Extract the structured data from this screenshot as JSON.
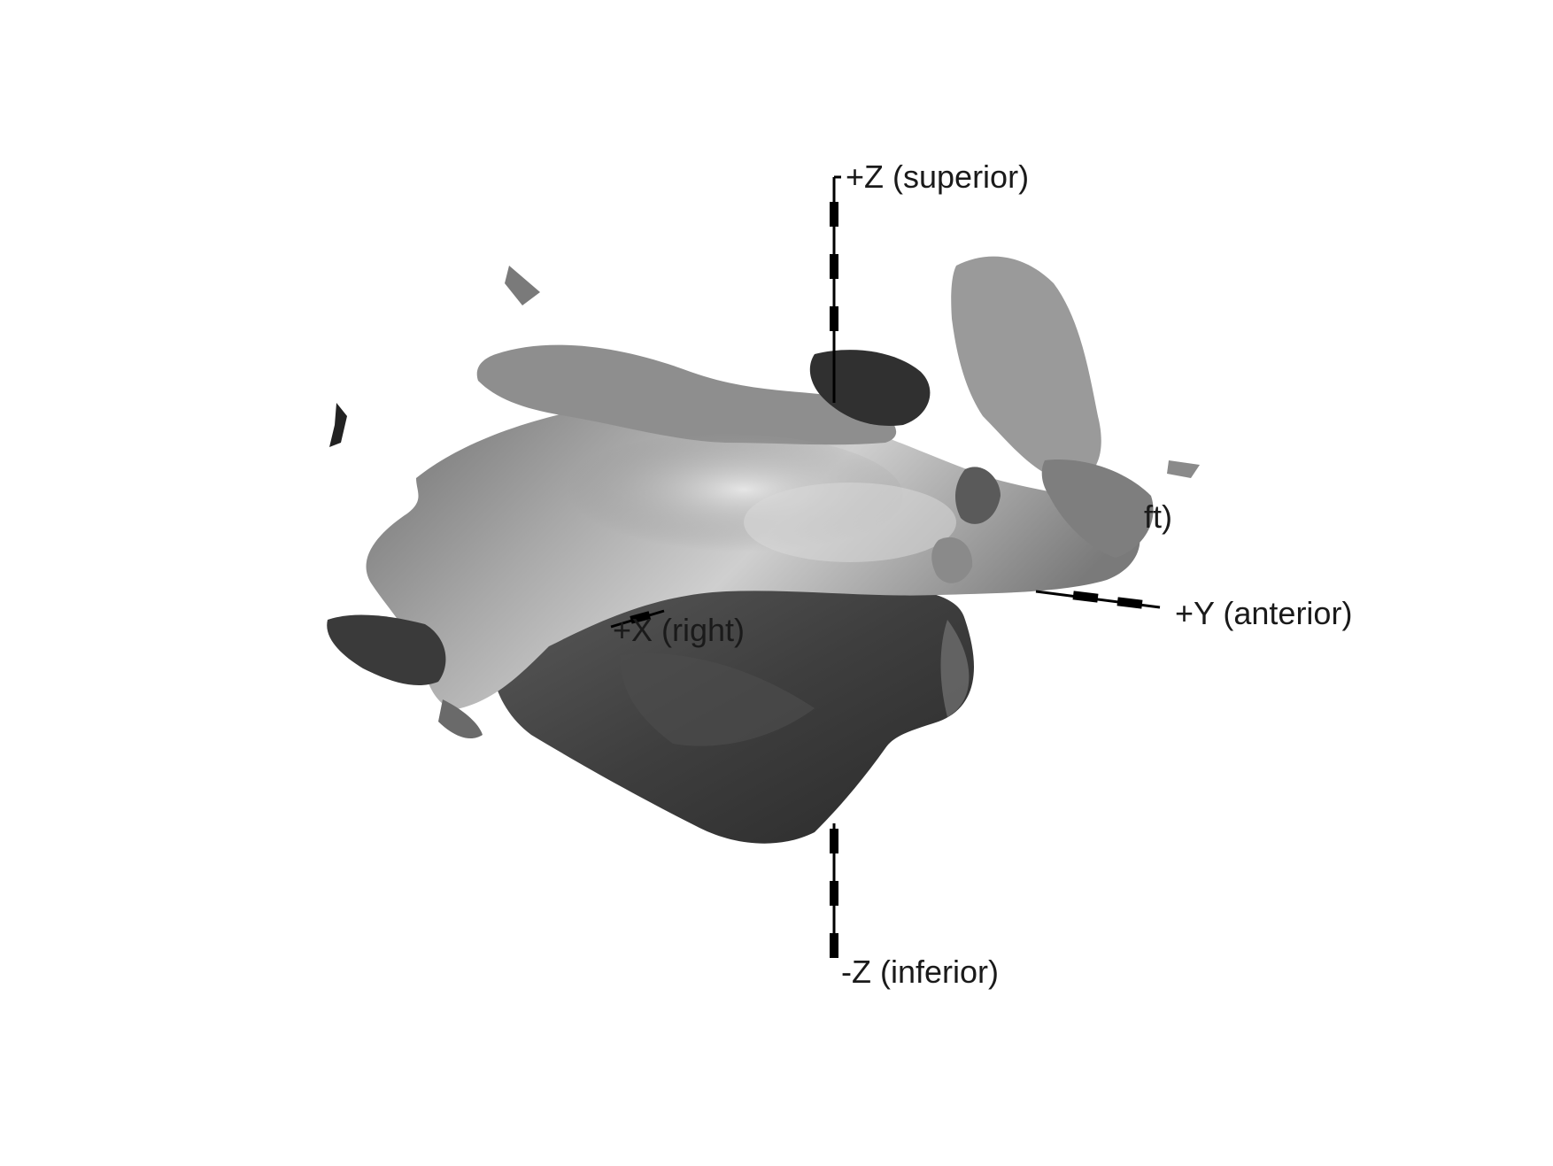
{
  "axes": {
    "z_superior": "+Z (superior)",
    "z_inferior": "-Z (inferior)",
    "y_anterior": "+Y (anterior)",
    "x_right": "+X (right)",
    "x_left_partial": "ft)"
  },
  "colors": {
    "background": "#ffffff",
    "axis_line": "#000000",
    "label_text": "#1a1a1a",
    "surface_light": "#d9d9d9",
    "surface_mid": "#8a8a8a",
    "surface_dark": "#2e2e2e"
  }
}
